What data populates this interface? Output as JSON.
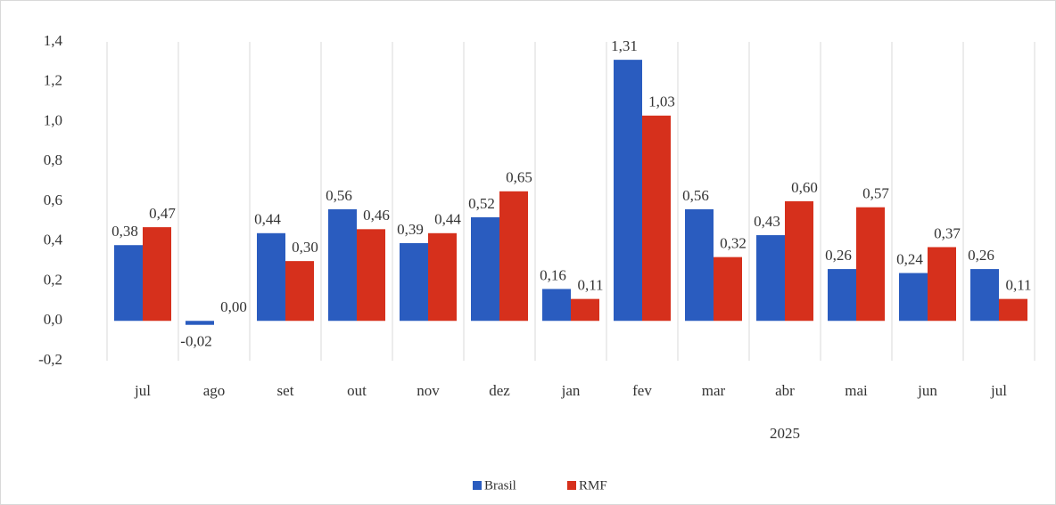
{
  "chart_data": {
    "type": "bar",
    "categories": [
      "jul",
      "ago",
      "set",
      "out",
      "nov",
      "dez",
      "jan",
      "fev",
      "mar",
      "abr",
      "mai",
      "jun",
      "jul"
    ],
    "group_label": "2025",
    "series": [
      {
        "name": "Brasil",
        "color": "#2a5cbf",
        "values": [
          0.38,
          -0.02,
          0.44,
          0.56,
          0.39,
          0.52,
          0.16,
          1.31,
          0.56,
          0.43,
          0.26,
          0.24,
          0.26
        ],
        "value_labels": [
          "0,38",
          "-0,02",
          "0,44",
          "0,56",
          "0,39",
          "0,52",
          "0,16",
          "1,31",
          "0,56",
          "0,43",
          "0,26",
          "0,24",
          "0,26"
        ]
      },
      {
        "name": "RMF",
        "color": "#d6301c",
        "values": [
          0.47,
          0.0,
          0.3,
          0.46,
          0.44,
          0.65,
          0.11,
          1.03,
          0.32,
          0.6,
          0.57,
          0.37,
          0.11
        ],
        "value_labels": [
          "0,47",
          "0,00",
          "0,30",
          "0,46",
          "0,44",
          "0,65",
          "0,11",
          "1,03",
          "0,32",
          "0,60",
          "0,57",
          "0,37",
          "0,11"
        ]
      }
    ],
    "ylim": [
      -0.2,
      1.4
    ],
    "yticks": [
      {
        "value": -0.2,
        "label": "-0,2"
      },
      {
        "value": 0,
        "label": "0,0"
      },
      {
        "value": 0.2,
        "label": "0,2"
      },
      {
        "value": 0.4,
        "label": "0,4"
      },
      {
        "value": 0.6,
        "label": "0,6"
      },
      {
        "value": 0.8,
        "label": "0,8"
      },
      {
        "value": 1.0,
        "label": "1,0"
      },
      {
        "value": 1.2,
        "label": "1,2"
      },
      {
        "value": 1.4,
        "label": "1,4"
      }
    ],
    "negative_label_color": "#e00000",
    "grid": "x",
    "legend": "bottom"
  }
}
